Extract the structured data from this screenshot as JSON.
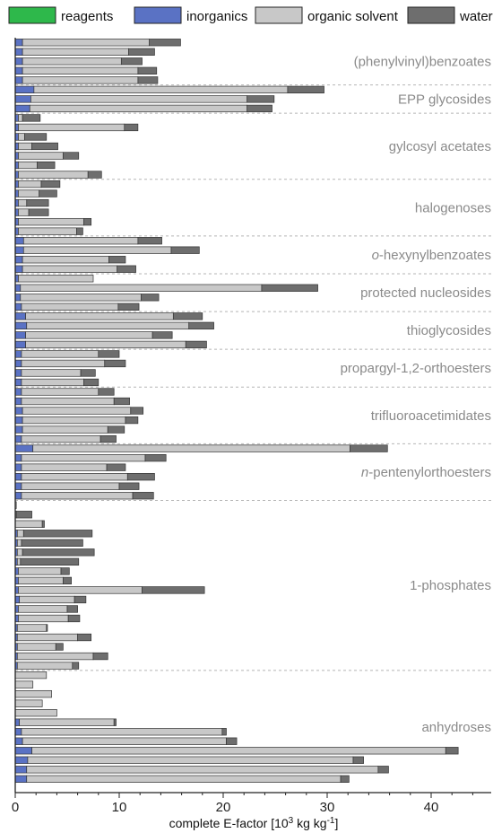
{
  "chart_data": {
    "type": "bar",
    "orientation": "horizontal",
    "stacked": true,
    "xlabel_main": "complete E-factor [10",
    "xlabel_sup": "3",
    "xlabel_tail": " kg kg",
    "xlabel_sup2": "-1",
    "xlabel_end": "]",
    "xlim": [
      0,
      46
    ],
    "xticks": [
      "0",
      "10",
      "20",
      "30",
      "40"
    ],
    "legend_position": "top",
    "series": [
      {
        "name": "reagents",
        "color": "#2eb84b"
      },
      {
        "name": "inorganics",
        "color": "#5a72c4"
      },
      {
        "name": "organic solvent",
        "color": "#c8c8c8"
      },
      {
        "name": "water",
        "color": "#6e6e6e"
      }
    ],
    "groups": [
      {
        "label": "(phenylvinyl)benzoates",
        "bars": [
          [
            0,
            0.7,
            12.2,
            3.0
          ],
          [
            0,
            0.7,
            10.2,
            2.5
          ],
          [
            0,
            0.7,
            9.5,
            2.0
          ],
          [
            0,
            0.7,
            11.1,
            1.8
          ],
          [
            0,
            0.7,
            11.1,
            1.9
          ]
        ]
      },
      {
        "label": "EPP glycosides",
        "bars": [
          [
            0,
            1.8,
            24.4,
            3.5
          ],
          [
            0,
            1.5,
            20.8,
            2.6
          ],
          [
            0,
            1.4,
            20.9,
            2.4
          ]
        ]
      },
      {
        "label": "gylcosyl acetates",
        "bars": [
          [
            0,
            0.3,
            0.4,
            1.7
          ],
          [
            0,
            0.3,
            10.2,
            1.3
          ],
          [
            0,
            0.3,
            0.6,
            2.1
          ],
          [
            0,
            0.3,
            1.3,
            2.5
          ],
          [
            0,
            0.3,
            4.3,
            1.5
          ],
          [
            0,
            0.3,
            1.8,
            1.7
          ],
          [
            0,
            0.3,
            6.7,
            1.3
          ]
        ]
      },
      {
        "label": "halogenoses",
        "bars": [
          [
            0,
            0.3,
            2.2,
            1.8
          ],
          [
            0,
            0.3,
            2.0,
            1.7
          ],
          [
            0,
            0.3,
            0.8,
            2.1
          ],
          [
            0,
            0.3,
            1.0,
            1.9
          ],
          [
            0,
            0.3,
            6.3,
            0.7
          ],
          [
            0,
            0.3,
            5.6,
            0.6
          ]
        ]
      },
      {
        "label": "o-hexynylbenzoates",
        "label_italic": "o",
        "label_rest": "-hexynylbenzoates",
        "bars": [
          [
            0,
            0.8,
            11.0,
            2.3
          ],
          [
            0,
            0.8,
            14.2,
            2.7
          ],
          [
            0,
            0.7,
            8.3,
            1.6
          ],
          [
            0,
            0.7,
            9.1,
            1.8
          ]
        ]
      },
      {
        "label": "protected nucleosides",
        "bars": [
          [
            0,
            0.3,
            7.2,
            0
          ],
          [
            0,
            0.5,
            23.2,
            5.4
          ],
          [
            0,
            0.5,
            11.6,
            1.7
          ],
          [
            0,
            0.6,
            9.3,
            2.0
          ]
        ]
      },
      {
        "label": "thioglycosides",
        "bars": [
          [
            0,
            1.0,
            14.2,
            2.8
          ],
          [
            0,
            1.1,
            15.6,
            2.4
          ],
          [
            0,
            1.0,
            12.2,
            1.9
          ],
          [
            0,
            1.0,
            15.4,
            2.0
          ]
        ]
      },
      {
        "label": "propargyl-1,2-orthoesters",
        "bars": [
          [
            0,
            0.6,
            7.4,
            2.0
          ],
          [
            0,
            0.6,
            8.0,
            2.0
          ],
          [
            0,
            0.6,
            5.7,
            1.4
          ],
          [
            0,
            0.6,
            6.0,
            1.4
          ]
        ]
      },
      {
        "label": "trifluoroacetimidates",
        "bars": [
          [
            0,
            0.6,
            7.4,
            1.5
          ],
          [
            0,
            0.6,
            8.9,
            1.5
          ],
          [
            0,
            0.7,
            10.4,
            1.2
          ],
          [
            0,
            0.7,
            9.9,
            1.2
          ],
          [
            0,
            0.7,
            8.2,
            1.6
          ],
          [
            0,
            0.6,
            7.6,
            1.5
          ]
        ]
      },
      {
        "label": "n-pentenylorthoesters",
        "label_italic": "n",
        "label_rest": "-pentenylorthoesters",
        "bars": [
          [
            0,
            1.7,
            30.5,
            3.6
          ],
          [
            0,
            0.6,
            11.9,
            2.0
          ],
          [
            0,
            0.6,
            8.2,
            1.8
          ],
          [
            0,
            0.6,
            10.2,
            2.6
          ],
          [
            0,
            0.6,
            9.4,
            1.9
          ],
          [
            0,
            0.6,
            10.7,
            2.0
          ]
        ]
      },
      {
        "label": "1-phosphates",
        "bars": [
          [
            0,
            0,
            0.1,
            0
          ],
          [
            0,
            0,
            0.1,
            1.5
          ],
          [
            0,
            0,
            2.6,
            0.2
          ],
          [
            0,
            0.2,
            0.6,
            6.6
          ],
          [
            0,
            0.2,
            0.4,
            5.9
          ],
          [
            0,
            0.2,
            0.5,
            6.9
          ],
          [
            0,
            0.2,
            0.3,
            5.6
          ],
          [
            0,
            0.3,
            4.1,
            0.8
          ],
          [
            0,
            0.3,
            4.3,
            0.8
          ],
          [
            0,
            0.3,
            11.9,
            6.0
          ],
          [
            0,
            0.4,
            5.3,
            1.1
          ],
          [
            0,
            0.3,
            4.7,
            1.0
          ],
          [
            0,
            0.3,
            4.8,
            1.1
          ],
          [
            0,
            0.2,
            2.8,
            0.1
          ],
          [
            0,
            0.2,
            5.8,
            1.3
          ],
          [
            0,
            0.2,
            3.7,
            0.7
          ],
          [
            0,
            0.2,
            7.3,
            1.4
          ],
          [
            0,
            0.2,
            5.3,
            0.6
          ]
        ]
      },
      {
        "label": "anhydroses",
        "bars": [
          [
            0,
            0,
            3.0,
            0
          ],
          [
            0,
            0,
            1.7,
            0
          ],
          [
            0,
            0,
            3.5,
            0
          ],
          [
            0,
            0,
            2.6,
            0
          ],
          [
            0,
            0,
            4.0,
            0
          ],
          [
            0,
            0.4,
            9.1,
            0.2
          ],
          [
            0,
            0.6,
            19.3,
            0.4
          ],
          [
            0,
            0.7,
            19.6,
            1.0
          ],
          [
            0,
            1.6,
            39.8,
            1.2
          ],
          [
            0,
            1.2,
            31.3,
            1.0
          ],
          [
            0,
            1.1,
            33.8,
            1.0
          ],
          [
            0,
            1.1,
            30.2,
            0.8
          ]
        ]
      }
    ]
  }
}
